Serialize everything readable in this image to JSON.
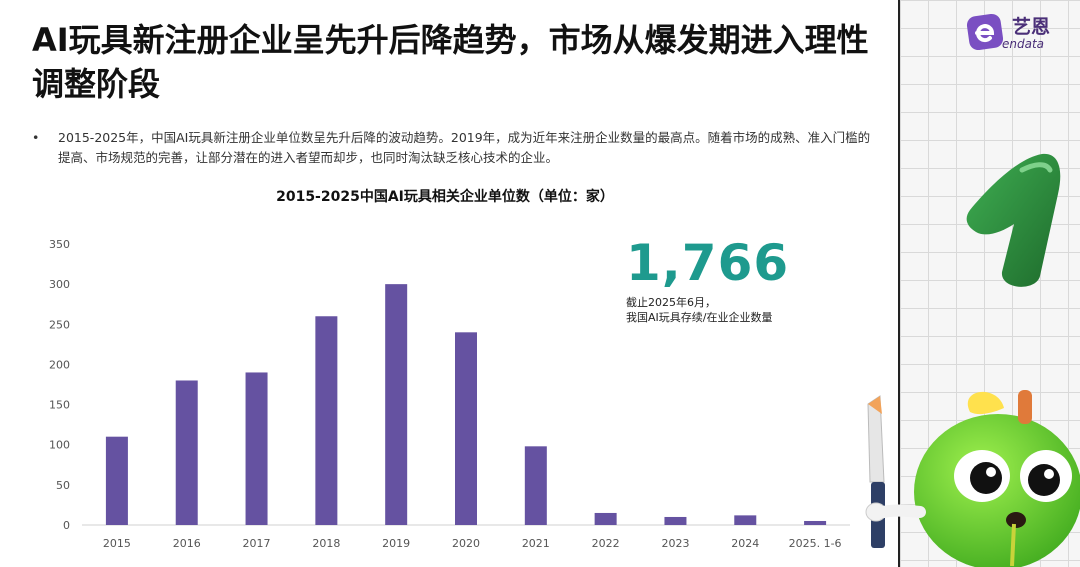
{
  "title": "AI玩具新注册企业呈先升后降趋势，市场从爆发期进入理性调整阶段",
  "bullet": {
    "marker": "•",
    "text": "2015-2025年，中国AI玩具新注册企业单位数呈先升后降的波动趋势。2019年，成为近年来注册企业数量的最高点。随着市场的成熟、准入门槛的提高、市场规范的完善，让部分潜在的进入者望而却步，也同时淘汰缺乏核心技术的企业。"
  },
  "kpi": {
    "value": "1,766",
    "note_line1": "截止2025年6月，",
    "note_line2": "我国AI玩具存续/在业企业数量"
  },
  "brand": {
    "name": "艺恩",
    "sub": "endata"
  },
  "icons": [
    "endata-logo-icon",
    "number-one-mascot-icon",
    "apple-mascot-icon"
  ],
  "colors": {
    "bar": "#6552a1",
    "kpi": "#1e9a8e",
    "brand": "#4a2f78"
  },
  "chart_data": {
    "type": "bar",
    "title": "2015-2025中国AI玩具相关企业单位数（单位：家）",
    "categories": [
      "2015",
      "2016",
      "2017",
      "2018",
      "2019",
      "2020",
      "2021",
      "2022",
      "2023",
      "2024",
      "2025. 1-6"
    ],
    "values": [
      110,
      180,
      190,
      260,
      300,
      240,
      98,
      15,
      10,
      12,
      5
    ],
    "ylim": [
      0,
      350
    ],
    "yticks": [
      "0",
      "50",
      "100",
      "150",
      "200",
      "250",
      "300",
      "350"
    ],
    "grid": false,
    "legend": "none"
  }
}
